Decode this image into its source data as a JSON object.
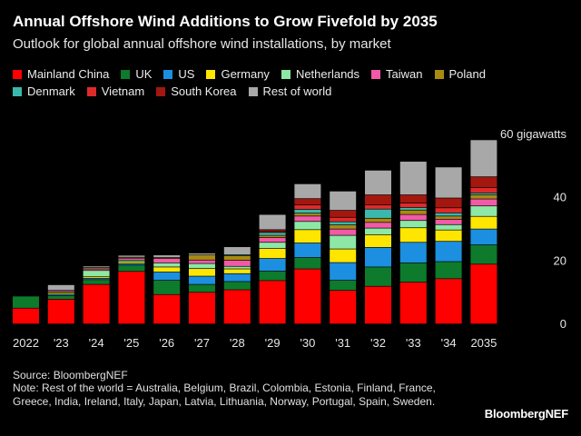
{
  "title": "Annual Offshore Wind Additions to Grow Fivefold by 2035",
  "subtitle": "Outlook for global annual offshore wind installations, by market",
  "source": "Source: BloombergNEF",
  "note": "Note: Rest of the world = Australia, Belgium, Brazil, Colombia, Estonia, Finland, France, Greece, India, Ireland, Italy, Japan, Latvia, Lithuania, Norway, Portugal, Spain, Sweden.",
  "brand": "BloombergNEF",
  "chart_data": {
    "type": "bar",
    "stacked": true,
    "title": "Annual Offshore Wind Additions to Grow Fivefold by 2035",
    "subtitle": "Outlook for global annual offshore wind installations, by market",
    "xlabel": "",
    "ylabel": "",
    "y_unit_label": "60 gigawatts",
    "ylim": [
      0,
      60
    ],
    "yticks": [
      0,
      20,
      40
    ],
    "yticks_labels": [
      "0",
      "20",
      "40"
    ],
    "grid": false,
    "legend_position": "top",
    "categories": [
      "2022",
      "'23",
      "'24",
      "'25",
      "'26",
      "'27",
      "'28",
      "'29",
      "'30",
      "'31",
      "'32",
      "'33",
      "'34",
      "2035"
    ],
    "series": [
      {
        "name": "Mainland China",
        "color": "#ff0000",
        "values": [
          5.0,
          7.8,
          12.5,
          16.6,
          9.3,
          10.0,
          10.8,
          13.7,
          17.4,
          10.6,
          11.9,
          13.2,
          14.3,
          18.9
        ]
      },
      {
        "name": "UK",
        "color": "#0e7a2c",
        "values": [
          3.8,
          1.2,
          1.5,
          2.0,
          4.5,
          2.5,
          2.6,
          3.0,
          3.6,
          3.2,
          6.1,
          6.1,
          5.4,
          6.1
        ]
      },
      {
        "name": "US",
        "color": "#1c8fe0",
        "values": [
          0.0,
          0.4,
          0.4,
          0.5,
          2.6,
          2.6,
          2.5,
          4.0,
          4.6,
          5.6,
          6.2,
          6.5,
          6.4,
          5.0
        ]
      },
      {
        "name": "Germany",
        "color": "#ffe600",
        "values": [
          0.2,
          0.5,
          0.5,
          0.6,
          1.6,
          2.4,
          1.5,
          3.2,
          4.2,
          4.3,
          4.0,
          4.6,
          3.6,
          4.0
        ]
      },
      {
        "name": "Netherlands",
        "color": "#8de8a6",
        "values": [
          0.1,
          0.3,
          2.0,
          0.5,
          1.3,
          1.6,
          0.8,
          1.9,
          2.6,
          4.3,
          2.1,
          2.3,
          1.7,
          3.3
        ]
      },
      {
        "name": "Taiwan",
        "color": "#f25aa8",
        "values": [
          0.2,
          0.4,
          0.5,
          0.6,
          1.4,
          1.1,
          1.9,
          1.5,
          1.7,
          2.0,
          1.8,
          1.9,
          1.7,
          2.2
        ]
      },
      {
        "name": "Poland",
        "color": "#a88a12",
        "values": [
          0.0,
          0.0,
          0.4,
          0.3,
          0.3,
          1.6,
          1.5,
          0.7,
          0.9,
          1.3,
          1.3,
          1.4,
          1.0,
          1.3
        ]
      },
      {
        "name": "Denmark",
        "color": "#3ab8ad",
        "values": [
          0.0,
          0.0,
          0.0,
          0.0,
          0.0,
          0.0,
          0.3,
          0.9,
          1.2,
          1.0,
          2.9,
          0.8,
          1.0,
          0.6
        ]
      },
      {
        "name": "Vietnam",
        "color": "#e02a2a",
        "values": [
          0.0,
          0.0,
          0.0,
          0.0,
          0.0,
          0.0,
          0.0,
          0.3,
          1.4,
          1.4,
          1.3,
          1.4,
          1.6,
          1.7
        ]
      },
      {
        "name": "South Korea",
        "color": "#a3170f",
        "values": [
          0.0,
          0.0,
          0.0,
          0.0,
          0.0,
          0.0,
          0.0,
          0.6,
          2.0,
          2.2,
          3.2,
          2.6,
          3.1,
          3.4
        ]
      },
      {
        "name": "Rest of world",
        "color": "#a8a8a8",
        "values": [
          0.0,
          1.8,
          0.5,
          0.6,
          0.8,
          0.6,
          2.5,
          4.8,
          4.7,
          6.1,
          7.8,
          10.6,
          9.8,
          11.7
        ]
      }
    ]
  }
}
